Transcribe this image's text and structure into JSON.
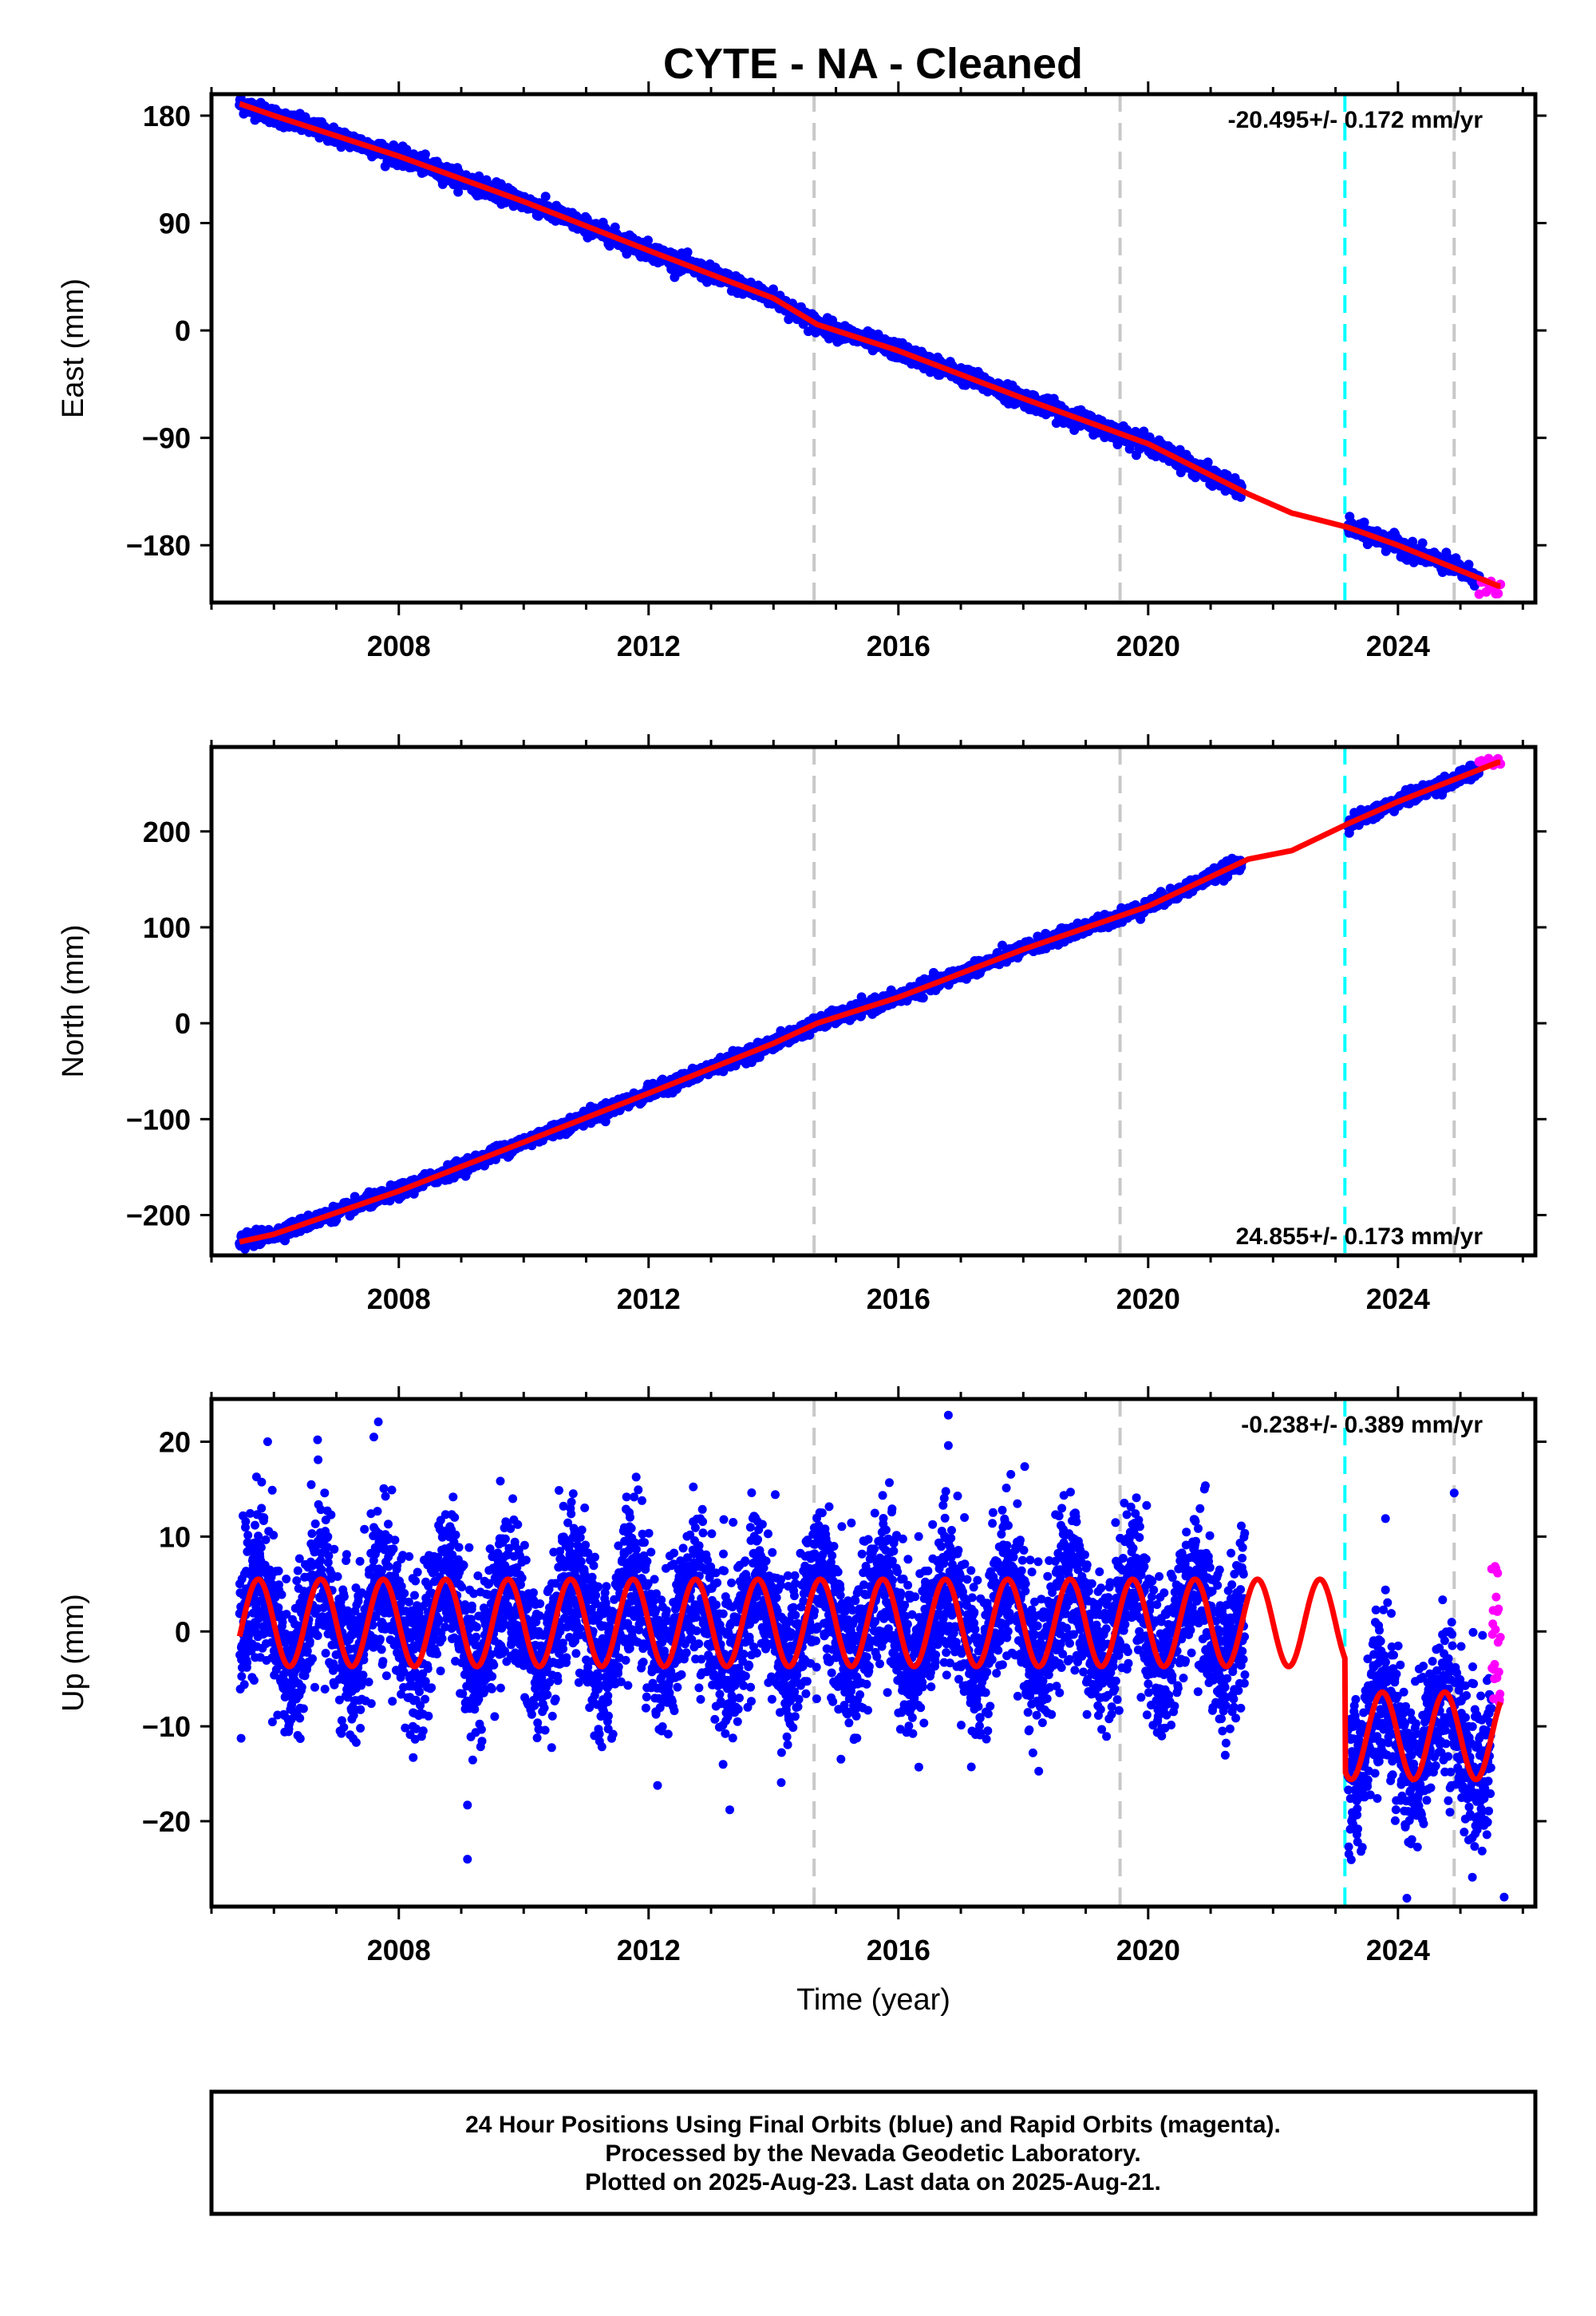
{
  "figure": {
    "title": "CYTE  - NA - Cleaned",
    "colors": {
      "final": "#0000ff",
      "rapid": "#ff00ff",
      "model": "#ff0000",
      "equipment_change": "#c8c8c8",
      "earthquake": "#00ffff"
    }
  },
  "chart_data": [
    {
      "type": "scatter",
      "component": "East",
      "ylabel": "East (mm)",
      "xlabel": "",
      "xlim": [
        2005.0,
        2026.2
      ],
      "ylim": [
        -228,
        198
      ],
      "yticks": [
        180,
        90,
        0,
        -90,
        -180
      ],
      "ytick_labels": [
        "180",
        "90",
        "0",
        "−90",
        "−180"
      ],
      "xticks": [
        2008,
        2012,
        2016,
        2020,
        2024
      ],
      "rate_text": "-20.495+/- 0.172 mm/yr",
      "rate_position": "top-right",
      "vlines_gray": [
        2014.65,
        2019.55,
        2024.9
      ],
      "vlines_cyan": [
        2023.15
      ],
      "model_points": [
        [
          2005.45,
          190
        ],
        [
          2006,
          180
        ],
        [
          2008,
          146
        ],
        [
          2010,
          108
        ],
        [
          2012,
          67
        ],
        [
          2014,
          27
        ],
        [
          2014.7,
          5
        ],
        [
          2016,
          -17
        ],
        [
          2018,
          -57
        ],
        [
          2020,
          -95
        ],
        [
          2021.6,
          -137
        ],
        [
          2022.3,
          -153
        ],
        [
          2023.2,
          -165
        ],
        [
          2024,
          -180
        ],
        [
          2025.6,
          -214
        ]
      ],
      "final_segments": [
        [
          2005.45,
          2021.5
        ],
        [
          2023.2,
          2025.3
        ]
      ],
      "rapid_range": [
        2025.3,
        2025.64
      ],
      "rapid_ylim": [
        -222,
        -210
      ],
      "noise": 3.5,
      "outliers": []
    },
    {
      "type": "scatter",
      "component": "North",
      "ylabel": "North (mm)",
      "xlabel": "",
      "xlim": [
        2005.0,
        2026.2
      ],
      "ylim": [
        -242,
        288
      ],
      "yticks": [
        200,
        100,
        0,
        -100,
        -200
      ],
      "ytick_labels": [
        "200",
        "100",
        "0",
        "−100",
        "−200"
      ],
      "xticks": [
        2008,
        2012,
        2016,
        2020,
        2024
      ],
      "rate_text": "24.855+/- 0.173 mm/yr",
      "rate_position": "bottom-right",
      "vlines_gray": [
        2014.65,
        2019.55,
        2024.9
      ],
      "vlines_cyan": [
        2023.15
      ],
      "model_points": [
        [
          2005.45,
          -228
        ],
        [
          2006,
          -220
        ],
        [
          2008,
          -175
        ],
        [
          2010,
          -124
        ],
        [
          2012,
          -73
        ],
        [
          2014,
          -21
        ],
        [
          2014.7,
          0
        ],
        [
          2016,
          27
        ],
        [
          2018,
          77
        ],
        [
          2020,
          122
        ],
        [
          2021.6,
          171
        ],
        [
          2022.3,
          180
        ],
        [
          2023.2,
          208
        ],
        [
          2024,
          231
        ],
        [
          2025.6,
          272
        ]
      ],
      "final_segments": [
        [
          2005.45,
          2021.5
        ],
        [
          2023.2,
          2025.3
        ]
      ],
      "rapid_range": [
        2025.3,
        2025.64
      ],
      "rapid_ylim": [
        268,
        276
      ],
      "noise": 3.5,
      "outliers": []
    },
    {
      "type": "scatter",
      "component": "Up",
      "ylabel": "Up (mm)",
      "xlabel": "Time (year)",
      "xlim": [
        2005.0,
        2026.2
      ],
      "ylim": [
        -29,
        24.5
      ],
      "yticks": [
        20,
        10,
        0,
        -10,
        -20
      ],
      "ytick_labels": [
        "20",
        "10",
        "0",
        "−10",
        "−20"
      ],
      "xticks": [
        2008,
        2012,
        2016,
        2020,
        2024
      ],
      "rate_text": "-0.238+/- 0.389 mm/yr",
      "rate_position": "top-right",
      "vlines_gray": [
        2014.65,
        2019.55,
        2024.9
      ],
      "vlines_cyan": [
        2023.15
      ],
      "seasonal": {
        "amplitude": 4.6,
        "mean_before_jump": 0.9,
        "mean_after_jump": -11.0,
        "jump_year": 2023.15,
        "peak_phase": 0.75
      },
      "final_segments": [
        [
          2005.45,
          2021.55
        ],
        [
          2023.2,
          2025.5
        ]
      ],
      "rapid_range": [
        2025.5,
        2025.64
      ],
      "rapid_ylim": [
        -9.5,
        7
      ],
      "noise": 4.0,
      "outliers": [
        [
          2009.1,
          -24
        ],
        [
          2009.1,
          -18.3
        ],
        [
          2016.8,
          22.8
        ],
        [
          2016.8,
          19.6
        ],
        [
          2007.6,
          20.5
        ],
        [
          2006.7,
          20.2
        ],
        [
          2005.9,
          20.0
        ],
        [
          2024.9,
          14.6
        ],
        [
          2023.8,
          11.9
        ],
        [
          2013.3,
          -18.8
        ],
        [
          2025.7,
          -28.0
        ],
        [
          2020.9,
          15.0
        ]
      ]
    }
  ],
  "footer": {
    "line1": "24 Hour Positions Using Final Orbits (blue) and Rapid Orbits (magenta).",
    "line2": "Processed by the Nevada Geodetic Laboratory.",
    "line3": "Plotted on 2025-Aug-23. Last data on 2025-Aug-21."
  }
}
